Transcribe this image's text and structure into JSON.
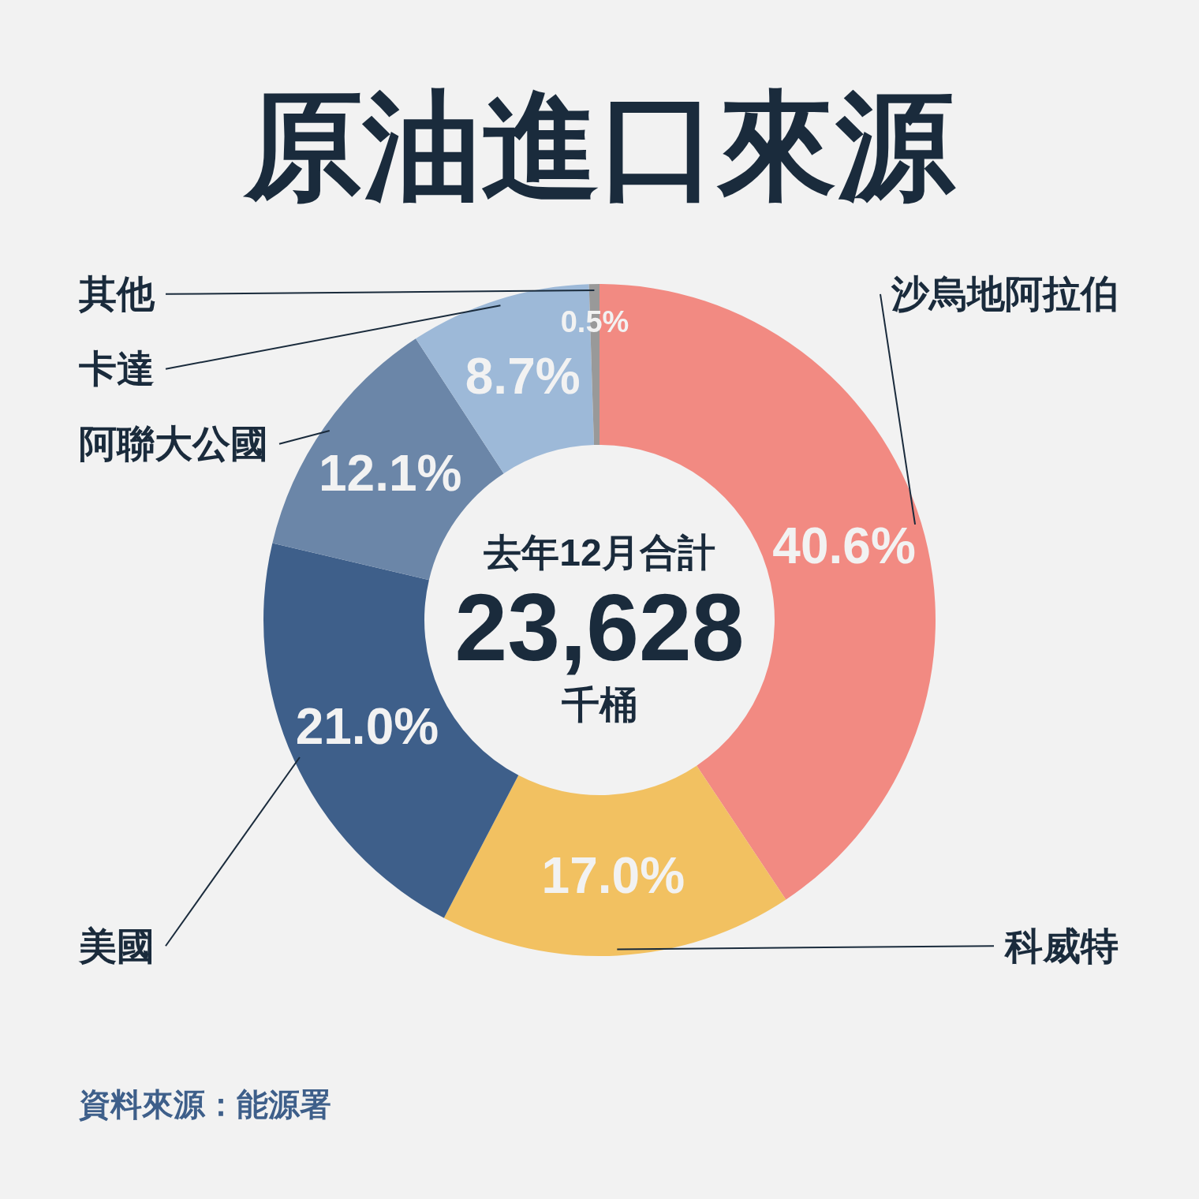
{
  "chart_data": {
    "type": "donut",
    "title": "原油進口來源",
    "categories": [
      "沙烏地阿拉伯",
      "科威特",
      "美國",
      "阿聯大公國",
      "卡達",
      "其他"
    ],
    "values": [
      40.6,
      17.0,
      21.0,
      12.1,
      8.7,
      0.5
    ],
    "value_labels": [
      "40.6%",
      "17.0%",
      "21.0%",
      "12.1%",
      "8.7%",
      "0.5%"
    ],
    "colors": [
      "#f28a82",
      "#f2c161",
      "#3e5f8a",
      "#6b86a8",
      "#9db9d8",
      "#999999"
    ],
    "annotations": [
      "去年12月合計",
      "23,628",
      "千桶",
      "資料來源：能源署"
    ]
  }
}
